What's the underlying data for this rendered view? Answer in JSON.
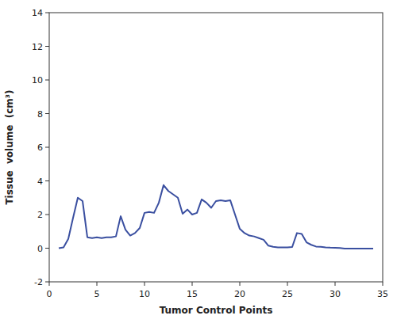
{
  "chart_data": {
    "type": "line",
    "x": [
      1,
      1.5,
      2,
      2.5,
      3,
      3.5,
      4,
      4.5,
      5,
      5.5,
      6,
      6.5,
      7,
      7.5,
      8,
      8.5,
      9,
      9.5,
      10,
      10.5,
      11,
      11.5,
      12,
      12.5,
      13,
      13.5,
      14,
      14.5,
      15,
      15.5,
      16,
      16.5,
      17,
      17.5,
      18,
      18.5,
      19,
      19.5,
      20,
      20.5,
      21,
      21.5,
      22,
      22.5,
      23,
      23.5,
      24,
      24.5,
      25,
      25.5,
      26,
      26.5,
      27,
      27.5,
      28,
      28.5,
      29,
      29.5,
      30,
      30.5,
      31,
      32,
      33,
      34
    ],
    "values": [
      0.0,
      0.05,
      0.55,
      1.8,
      3.0,
      2.8,
      0.65,
      0.6,
      0.65,
      0.6,
      0.65,
      0.65,
      0.7,
      1.9,
      1.1,
      0.75,
      0.9,
      1.2,
      2.1,
      2.15,
      2.1,
      2.7,
      3.75,
      3.4,
      3.2,
      3.0,
      2.05,
      2.3,
      2.0,
      2.1,
      2.9,
      2.7,
      2.4,
      2.8,
      2.85,
      2.8,
      2.85,
      2.0,
      1.15,
      0.9,
      0.75,
      0.7,
      0.6,
      0.5,
      0.15,
      0.08,
      0.05,
      0.05,
      0.05,
      0.07,
      0.9,
      0.85,
      0.35,
      0.2,
      0.1,
      0.08,
      0.05,
      0.03,
      0.02,
      0.01,
      -0.02,
      -0.02,
      -0.02,
      -0.02
    ],
    "color": "#3a4fa0",
    "xlabel": "Tumor Control Points",
    "ylabel": "Tissue  volume  (cm³)",
    "xlim": [
      0,
      35
    ],
    "ylim": [
      -2,
      14
    ],
    "xticks": [
      0,
      5,
      10,
      15,
      20,
      25,
      30,
      35
    ],
    "yticks": [
      -2,
      0,
      2,
      4,
      6,
      8,
      10,
      12,
      14
    ]
  }
}
